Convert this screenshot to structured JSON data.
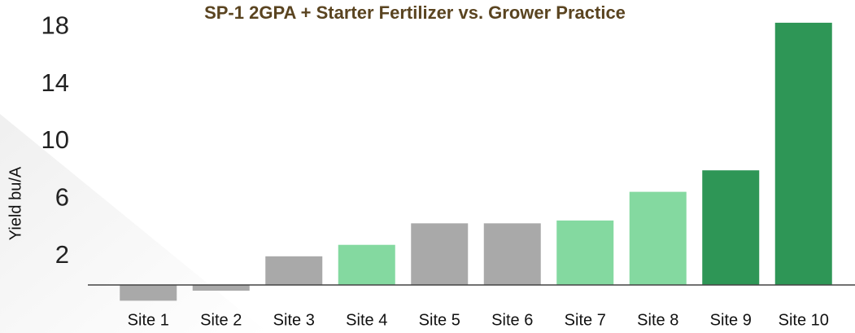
{
  "chart_data": {
    "type": "bar",
    "title": "SP-1  2GPA + Starter Fertilizer vs. Grower Practice",
    "ylabel": "Yield bu/A",
    "categories": [
      "Site 1",
      "Site 2",
      "Site 3",
      "Site 4",
      "Site 5",
      "Site 6",
      "Site 7",
      "Site 8",
      "Site 9",
      "Site 10"
    ],
    "values": [
      -1.1,
      -0.4,
      2.0,
      2.8,
      4.3,
      4.3,
      4.5,
      6.5,
      8.0,
      18.3
    ],
    "colors": [
      "#a9a9a9",
      "#a9a9a9",
      "#a9a9a9",
      "#84d9a0",
      "#a9a9a9",
      "#a9a9a9",
      "#84d9a0",
      "#84d9a0",
      "#2e9656",
      "#2e9656"
    ],
    "ylim": [
      -1.5,
      19.5
    ],
    "yticks": [
      2,
      6,
      10,
      14,
      18
    ],
    "grid": false
  }
}
